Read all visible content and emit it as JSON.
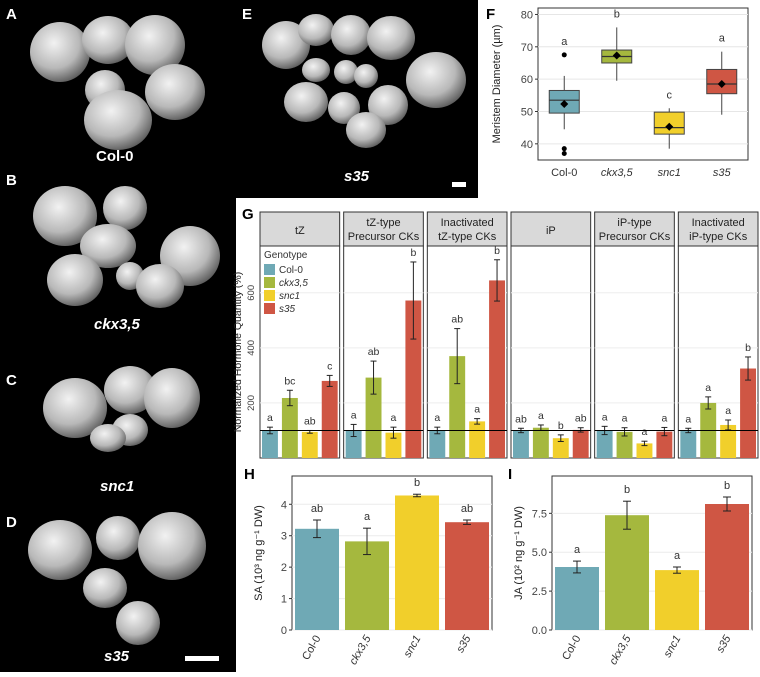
{
  "micrographs": [
    {
      "letter": "A",
      "caption": "Col-0",
      "italic": false
    },
    {
      "letter": "B",
      "caption": "ckx3,5",
      "italic": true
    },
    {
      "letter": "C",
      "caption": "snc1",
      "italic": true
    },
    {
      "letter": "D",
      "caption": "s35",
      "italic": true
    },
    {
      "letter": "E",
      "caption": "s35",
      "italic": true
    }
  ],
  "genotypes": [
    "Col-0",
    "ckx3,5",
    "snc1",
    "s35"
  ],
  "colors": {
    "Col-0": "#6fa9b5",
    "ckx3,5": "#a5b83e",
    "snc1": "#f1cf2b",
    "s35": "#cf5644"
  },
  "panel_letters": {
    "F": "F",
    "G": "G",
    "H": "H",
    "I": "I"
  },
  "chart_data": [
    {
      "panel": "F",
      "type": "box",
      "ylabel": "Meristem Diameter (µm)",
      "ylim": [
        35,
        82
      ],
      "yticks": [
        40,
        50,
        60,
        70,
        80
      ],
      "categories": [
        "Col-0",
        "ckx3,5",
        "snc1",
        "s35"
      ],
      "boxes": [
        {
          "q1": 49.5,
          "median": 53.5,
          "q3": 56.5,
          "whisker_low": 44.5,
          "whisker_high": 61,
          "mean": 52.3,
          "outliers": [
            67.5,
            38.5,
            37
          ],
          "letter": "a"
        },
        {
          "q1": 65,
          "median": 67,
          "q3": 69,
          "whisker_low": 59.5,
          "whisker_high": 76,
          "mean": 67.3,
          "outliers": [],
          "letter": "b"
        },
        {
          "q1": 43,
          "median": 45,
          "q3": 49.8,
          "whisker_low": 38.5,
          "whisker_high": 51,
          "mean": 45.3,
          "outliers": [],
          "letter": "c"
        },
        {
          "q1": 55.5,
          "median": 58.5,
          "q3": 63,
          "whisker_low": 49,
          "whisker_high": 68.5,
          "mean": 58.5,
          "outliers": [],
          "letter": "a"
        }
      ]
    },
    {
      "panel": "G",
      "type": "bar",
      "ylabel": "Normalized Hormone Quantity (%)",
      "ylim": [
        0,
        770
      ],
      "yticks": [
        200,
        400,
        600
      ],
      "reference_line": 100,
      "legend_title": "Genotype",
      "facets": [
        {
          "title": [
            "tZ"
          ],
          "values": [
            100,
            218,
            95,
            280
          ],
          "errors": [
            12,
            28,
            5,
            20
          ],
          "letters": [
            "a",
            "bc",
            "ab",
            "c"
          ]
        },
        {
          "title": [
            "tZ-type",
            "Precursor CKs"
          ],
          "values": [
            100,
            292,
            92,
            572
          ],
          "errors": [
            22,
            60,
            20,
            140
          ],
          "letters": [
            "a",
            "ab",
            "a",
            "b"
          ]
        },
        {
          "title": [
            "Inactivated",
            "tZ-type CKs"
          ],
          "values": [
            100,
            370,
            133,
            645
          ],
          "errors": [
            12,
            100,
            10,
            75
          ],
          "letters": [
            "a",
            "ab",
            "a",
            "b"
          ]
        },
        {
          "title": [
            "iP"
          ],
          "values": [
            100,
            110,
            72,
            102
          ],
          "errors": [
            8,
            10,
            12,
            8
          ],
          "letters": [
            "ab",
            "a",
            "b",
            "ab"
          ]
        },
        {
          "title": [
            "iP-type",
            "Precursor CKs"
          ],
          "values": [
            100,
            95,
            53,
            96
          ],
          "errors": [
            15,
            15,
            8,
            15
          ],
          "letters": [
            "a",
            "a",
            "a",
            "a"
          ]
        },
        {
          "title": [
            "Inactivated",
            "iP-type CKs"
          ],
          "values": [
            100,
            200,
            120,
            325
          ],
          "errors": [
            8,
            22,
            18,
            42
          ],
          "letters": [
            "a",
            "a",
            "a",
            "b"
          ]
        }
      ]
    },
    {
      "panel": "H",
      "type": "bar",
      "ylabel": "SA (10³ ng g⁻¹ DW)",
      "ylim": [
        0,
        4.9
      ],
      "yticks": [
        0,
        1,
        2,
        3,
        4
      ],
      "categories": [
        "Col-0",
        "ckx3,5",
        "snc1",
        "s35"
      ],
      "values": [
        3.22,
        2.82,
        4.28,
        3.43
      ],
      "errors": [
        0.28,
        0.42,
        0.04,
        0.07
      ],
      "letters": [
        "ab",
        "a",
        "b",
        "ab"
      ]
    },
    {
      "panel": "I",
      "type": "bar",
      "ylabel": "JA (10² ng g⁻¹ DW)",
      "ylim": [
        0,
        9.9
      ],
      "yticks": [
        0,
        2.5,
        5.0,
        7.5
      ],
      "ytick_labels": [
        "0.0",
        "2.5",
        "5.0",
        "7.5"
      ],
      "categories": [
        "Col-0",
        "ckx3,5",
        "snc1",
        "s35"
      ],
      "values": [
        4.05,
        7.38,
        3.85,
        8.1
      ],
      "errors": [
        0.38,
        0.9,
        0.2,
        0.45
      ],
      "letters": [
        "a",
        "b",
        "a",
        "b"
      ]
    }
  ]
}
